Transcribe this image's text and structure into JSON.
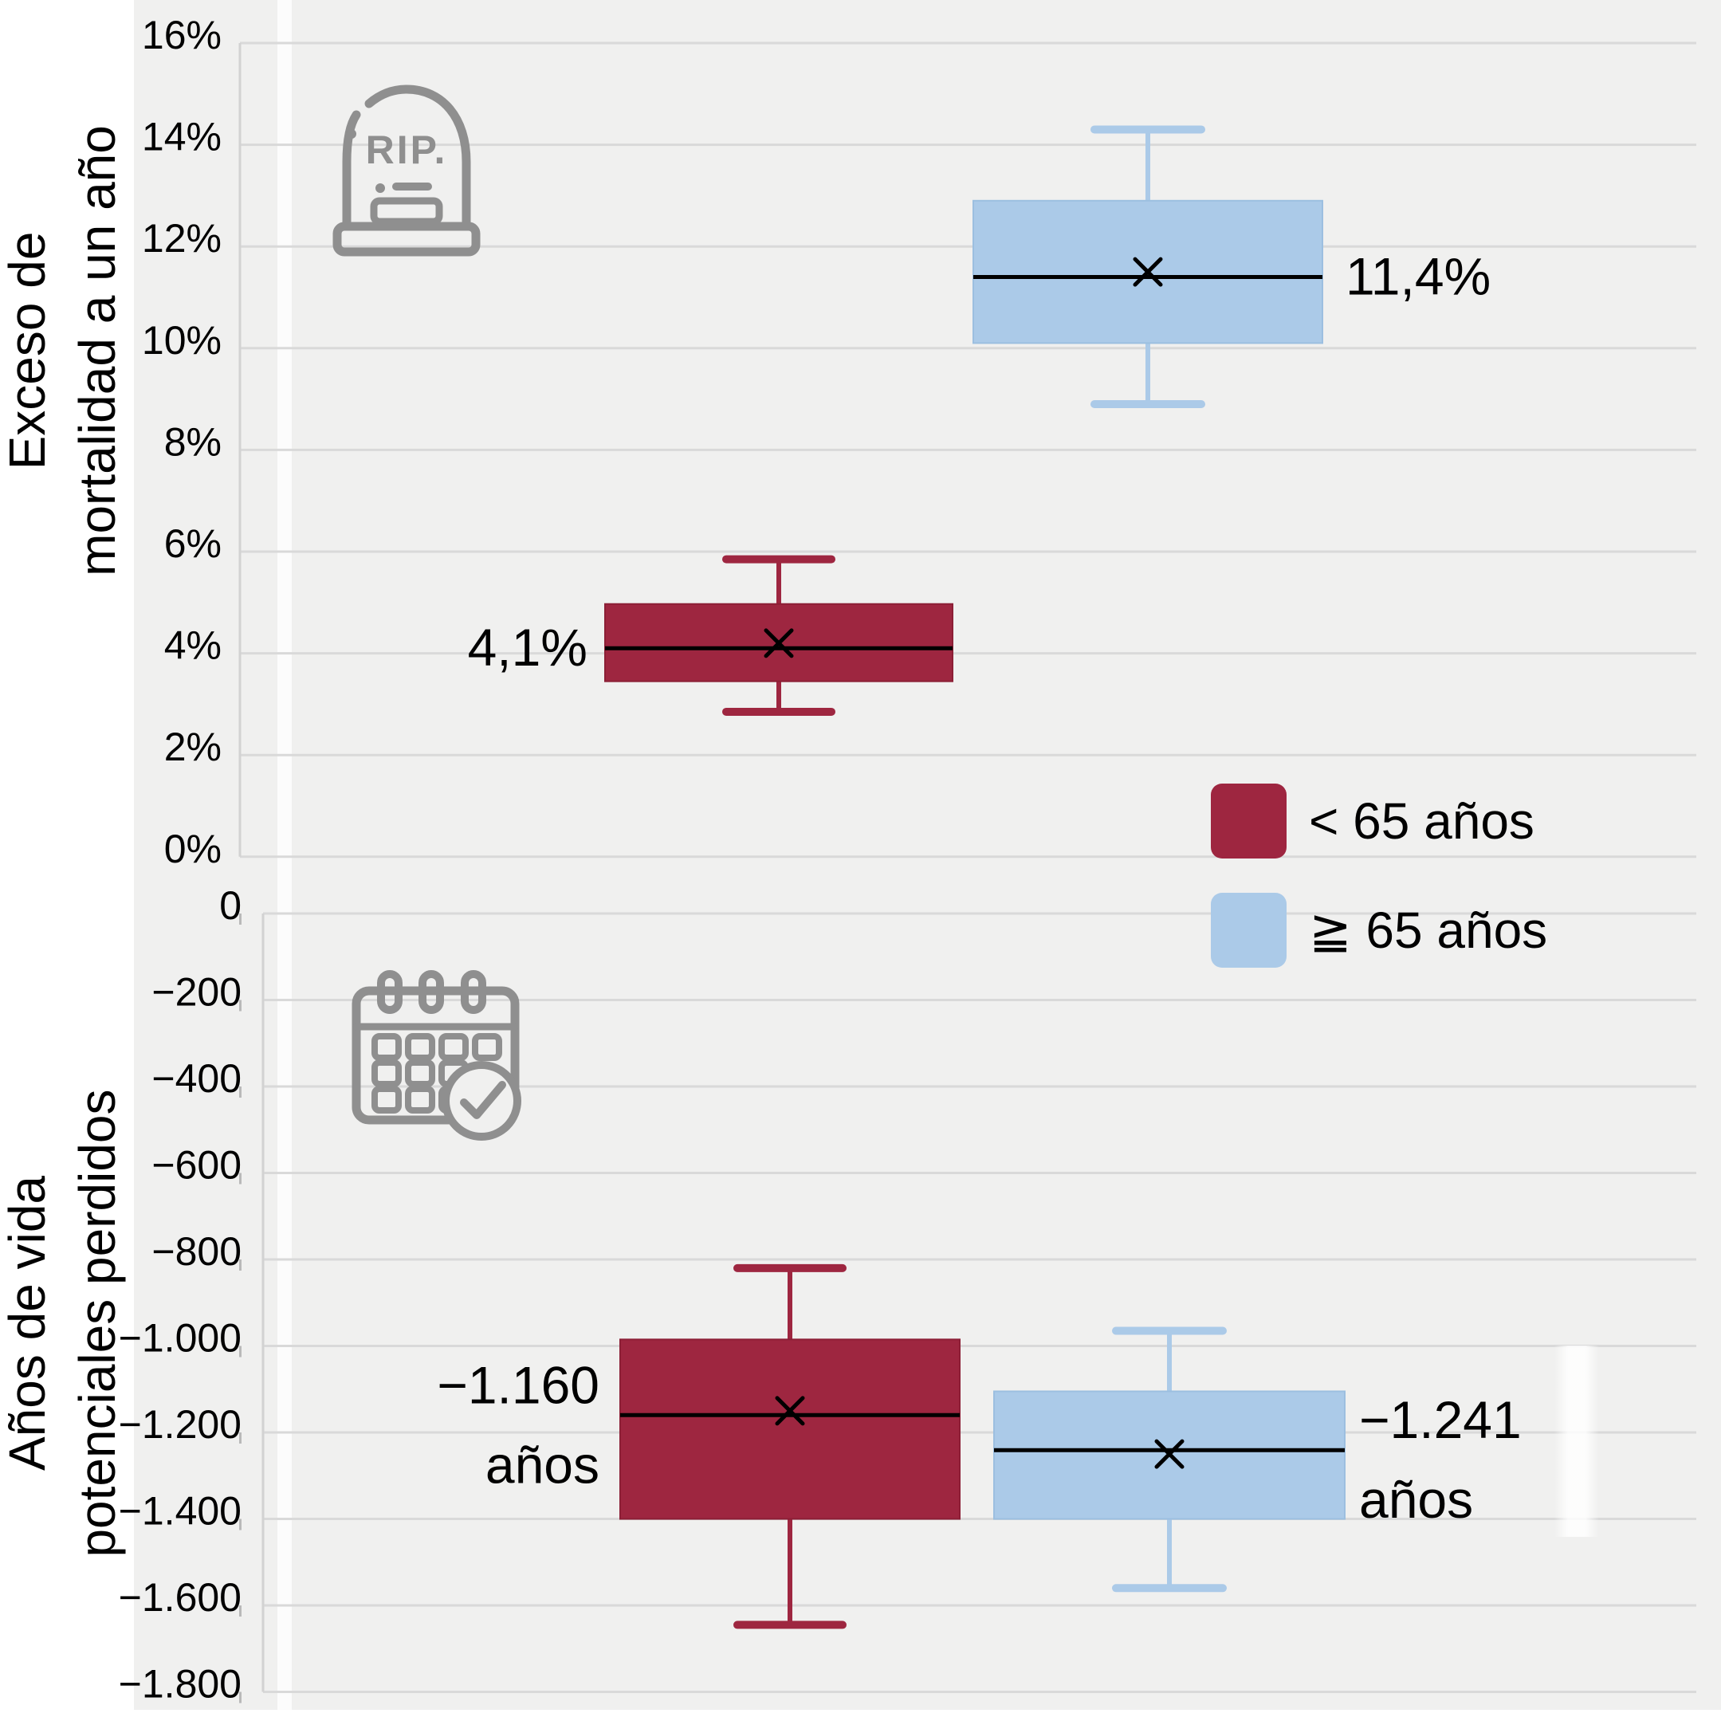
{
  "figure": {
    "bg_color": "#f0f0ef",
    "axis_titles": {
      "top": [
        "Exceso de",
        "mortalidad a un año"
      ],
      "bottom": [
        "Años de vida",
        "potenciales perdidos"
      ]
    },
    "legend": {
      "items": [
        {
          "label": "< 65 años",
          "color": "#9e2640"
        },
        {
          "label": "≧ 65 años",
          "color": "#abcae8"
        }
      ]
    },
    "icons": {
      "top_panel": "tombstone-rip-icon",
      "bottom_panel": "calendar-check-icon",
      "color": "#8f8f8f",
      "tombstone_text": "RIP."
    },
    "grid_color": "#d9d9d9",
    "text_color": "#000000"
  },
  "chart_data": [
    {
      "type": "box",
      "title": "",
      "ylabel": "Exceso de mortalidad a un año",
      "ylim": [
        0,
        16
      ],
      "grid": true,
      "legend_position": "right-middle",
      "tick_values": [
        16,
        14,
        12,
        10,
        8,
        6,
        4,
        2,
        0
      ],
      "tick_labels": [
        "16%",
        "14%",
        "12%",
        "10%",
        "8%",
        "6%",
        "4%",
        "2%",
        "0%"
      ],
      "series": [
        {
          "name": "< 65 años",
          "color": "#9e2640",
          "border": "#8c1f36",
          "whisker_low": 2.85,
          "q1": 3.45,
          "median": 4.1,
          "mean": 4.2,
          "q3": 4.97,
          "whisker_high": 5.85,
          "value_label": "4,1%"
        },
        {
          "name": "≥ 65 años",
          "color": "#abcae8",
          "border": "#9cbfe0",
          "whisker_low": 8.9,
          "q1": 10.1,
          "median": 11.4,
          "mean": 11.5,
          "q3": 12.9,
          "whisker_high": 14.3,
          "value_label": "11,4%"
        }
      ]
    },
    {
      "type": "box",
      "title": "",
      "ylabel": "Años de vida potenciales perdidos",
      "ylim": [
        -1800,
        0
      ],
      "grid": true,
      "tick_values": [
        0,
        -200,
        -400,
        -600,
        -800,
        -1000,
        -1200,
        -1400,
        -1600,
        -1800
      ],
      "tick_labels": [
        "0",
        "−200",
        "−400",
        "−600",
        "−800",
        "−1.000",
        "−1.200",
        "−1.400",
        "−1.600",
        "−1.800"
      ],
      "series": [
        {
          "name": "< 65 años",
          "color": "#9e2640",
          "border": "#8c1f36",
          "whisker_low": -1645,
          "q1": -1400,
          "median": -1160,
          "mean": -1150,
          "q3": -985,
          "whisker_high": -820,
          "value_label_lines": [
            "−1.160",
            "años"
          ]
        },
        {
          "name": "≥ 65 años",
          "color": "#abcae8",
          "border": "#9cbfe0",
          "whisker_low": -1560,
          "q1": -1400,
          "median": -1241,
          "mean": -1250,
          "q3": -1105,
          "whisker_high": -965,
          "value_label_lines": [
            "−1.241",
            "años"
          ]
        }
      ]
    }
  ]
}
